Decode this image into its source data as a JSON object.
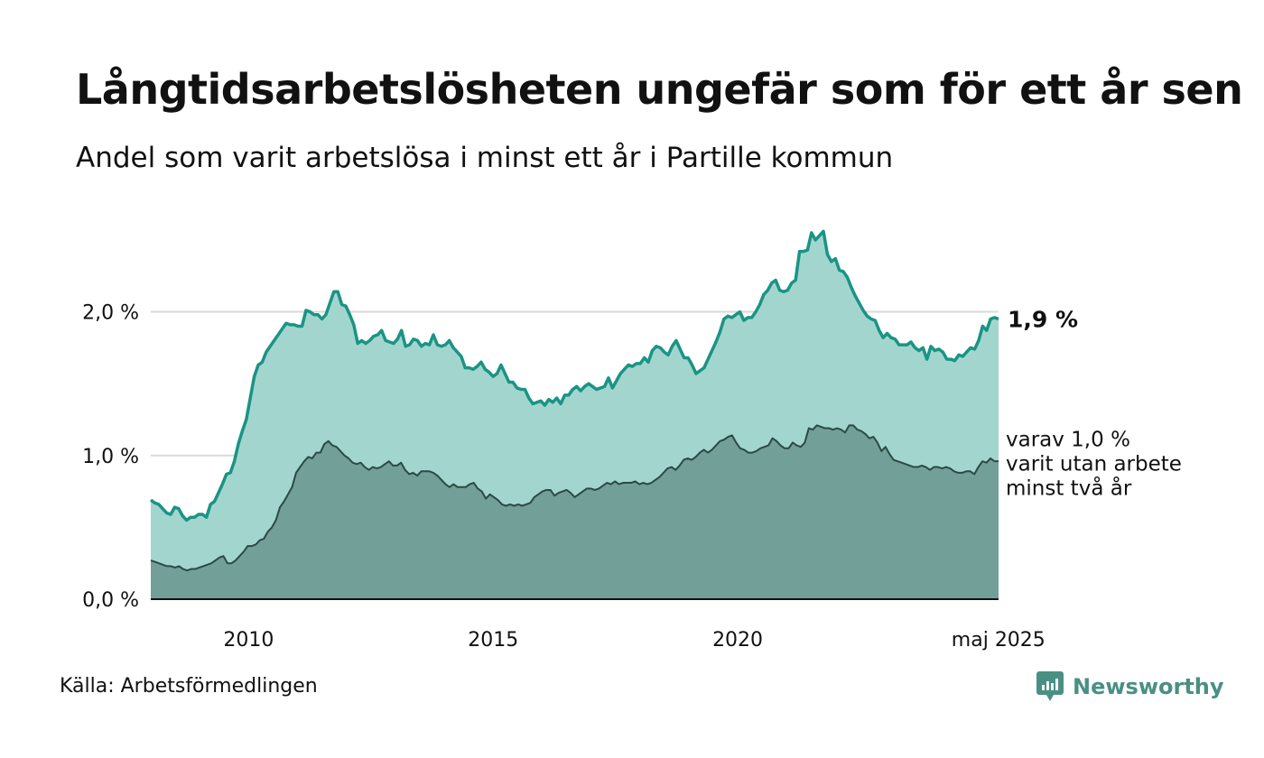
{
  "title": "Långtidsarbetslösheten ungefär som för ett år sen",
  "subtitle": "Andel som varit arbetslösa i minst ett år i Partille kommun",
  "source": "Källa: Arbetsförmedlingen",
  "brand": {
    "name": "Newsworthy",
    "icon": "newsworthy-logo-icon",
    "color": "#4a8f84"
  },
  "colors": {
    "main_line": "#1a9484",
    "main_fill": "#a3d5cf",
    "sub_line": "#2b4a44",
    "sub_fill": "#729f97",
    "grid": "#d9d9d9",
    "axis": "#111111"
  },
  "chart_data": {
    "type": "area",
    "x_start": "2008-01",
    "x_end": "2025-05",
    "frequency": "monthly",
    "ylim": [
      0,
      2.6
    ],
    "y_ticks": [
      {
        "value": 0,
        "label": "0,0 %"
      },
      {
        "value": 1,
        "label": "1,0 %"
      },
      {
        "value": 2,
        "label": "2,0 %"
      }
    ],
    "x_ticks": [
      {
        "year": 2010,
        "label": "2010"
      },
      {
        "year": 2015,
        "label": "2015"
      },
      {
        "year": 2020,
        "label": "2020"
      },
      {
        "year": 2025.33,
        "label": "maj 2025"
      }
    ],
    "grid": true,
    "series": [
      {
        "key": "minst_ett_ar",
        "values": [
          0.69,
          0.67,
          0.66,
          0.63,
          0.6,
          0.59,
          0.64,
          0.63,
          0.58,
          0.55,
          0.57,
          0.57,
          0.59,
          0.59,
          0.57,
          0.66,
          0.68,
          0.74,
          0.8,
          0.87,
          0.88,
          0.96,
          1.08,
          1.17,
          1.25,
          1.4,
          1.55,
          1.63,
          1.65,
          1.72,
          1.76,
          1.8,
          1.84,
          1.88,
          1.92,
          1.91,
          1.91,
          1.9,
          1.9,
          2.01,
          2.0,
          1.98,
          1.98,
          1.95,
          1.98,
          2.06,
          2.14,
          2.14,
          2.05,
          2.04,
          1.98,
          1.91,
          1.78,
          1.8,
          1.78,
          1.8,
          1.83,
          1.84,
          1.87,
          1.8,
          1.79,
          1.78,
          1.81,
          1.87,
          1.76,
          1.77,
          1.81,
          1.8,
          1.76,
          1.78,
          1.77,
          1.84,
          1.77,
          1.76,
          1.77,
          1.8,
          1.75,
          1.72,
          1.69,
          1.61,
          1.61,
          1.6,
          1.62,
          1.65,
          1.6,
          1.58,
          1.55,
          1.57,
          1.63,
          1.57,
          1.51,
          1.51,
          1.47,
          1.46,
          1.46,
          1.4,
          1.36,
          1.37,
          1.38,
          1.35,
          1.39,
          1.37,
          1.4,
          1.36,
          1.42,
          1.42,
          1.46,
          1.48,
          1.45,
          1.48,
          1.5,
          1.48,
          1.46,
          1.47,
          1.48,
          1.54,
          1.47,
          1.52,
          1.57,
          1.6,
          1.63,
          1.62,
          1.64,
          1.64,
          1.68,
          1.65,
          1.73,
          1.76,
          1.75,
          1.72,
          1.7,
          1.76,
          1.8,
          1.74,
          1.68,
          1.68,
          1.63,
          1.57,
          1.59,
          1.61,
          1.67,
          1.73,
          1.79,
          1.86,
          1.95,
          1.97,
          1.96,
          1.98,
          2.0,
          1.94,
          1.96,
          1.96,
          2.0,
          2.05,
          2.12,
          2.15,
          2.2,
          2.22,
          2.15,
          2.14,
          2.15,
          2.2,
          2.22,
          2.42,
          2.42,
          2.43,
          2.55,
          2.5,
          2.53,
          2.56,
          2.4,
          2.35,
          2.37,
          2.29,
          2.28,
          2.24,
          2.17,
          2.11,
          2.06,
          2.01,
          1.97,
          1.95,
          1.94,
          1.87,
          1.82,
          1.85,
          1.82,
          1.81,
          1.77,
          1.77,
          1.77,
          1.79,
          1.75,
          1.73,
          1.75,
          1.67,
          1.76,
          1.73,
          1.74,
          1.72,
          1.67,
          1.67,
          1.66,
          1.7,
          1.69,
          1.72,
          1.75,
          1.74,
          1.8,
          1.9,
          1.87,
          1.95,
          1.96,
          1.95
        ]
      },
      {
        "key": "minst_tva_ar",
        "values": [
          0.27,
          0.26,
          0.25,
          0.24,
          0.23,
          0.23,
          0.22,
          0.23,
          0.21,
          0.2,
          0.21,
          0.21,
          0.22,
          0.23,
          0.24,
          0.25,
          0.27,
          0.29,
          0.3,
          0.25,
          0.25,
          0.27,
          0.3,
          0.33,
          0.37,
          0.37,
          0.38,
          0.41,
          0.42,
          0.47,
          0.5,
          0.55,
          0.64,
          0.68,
          0.73,
          0.78,
          0.88,
          0.92,
          0.96,
          0.99,
          0.98,
          1.02,
          1.02,
          1.08,
          1.1,
          1.07,
          1.06,
          1.03,
          1.0,
          0.98,
          0.95,
          0.94,
          0.95,
          0.92,
          0.9,
          0.92,
          0.91,
          0.92,
          0.94,
          0.96,
          0.93,
          0.93,
          0.95,
          0.9,
          0.87,
          0.88,
          0.86,
          0.89,
          0.89,
          0.89,
          0.88,
          0.86,
          0.83,
          0.8,
          0.78,
          0.8,
          0.78,
          0.78,
          0.78,
          0.8,
          0.81,
          0.77,
          0.75,
          0.7,
          0.73,
          0.71,
          0.69,
          0.66,
          0.65,
          0.66,
          0.65,
          0.66,
          0.65,
          0.66,
          0.67,
          0.71,
          0.73,
          0.75,
          0.76,
          0.76,
          0.72,
          0.74,
          0.75,
          0.76,
          0.74,
          0.71,
          0.73,
          0.75,
          0.77,
          0.77,
          0.76,
          0.77,
          0.79,
          0.81,
          0.8,
          0.82,
          0.8,
          0.81,
          0.81,
          0.81,
          0.82,
          0.8,
          0.81,
          0.8,
          0.81,
          0.83,
          0.85,
          0.88,
          0.91,
          0.92,
          0.9,
          0.93,
          0.97,
          0.98,
          0.97,
          0.99,
          1.02,
          1.04,
          1.02,
          1.04,
          1.07,
          1.1,
          1.11,
          1.13,
          1.14,
          1.09,
          1.05,
          1.04,
          1.02,
          1.02,
          1.03,
          1.05,
          1.06,
          1.07,
          1.12,
          1.1,
          1.07,
          1.05,
          1.05,
          1.09,
          1.07,
          1.06,
          1.09,
          1.19,
          1.18,
          1.21,
          1.2,
          1.19,
          1.19,
          1.18,
          1.19,
          1.18,
          1.16,
          1.21,
          1.21,
          1.18,
          1.17,
          1.15,
          1.12,
          1.13,
          1.09,
          1.03,
          1.06,
          1.01,
          0.97,
          0.96,
          0.95,
          0.94,
          0.93,
          0.92,
          0.92,
          0.93,
          0.92,
          0.9,
          0.92,
          0.92,
          0.91,
          0.92,
          0.91,
          0.89,
          0.88,
          0.88,
          0.89,
          0.89,
          0.87,
          0.92,
          0.96,
          0.95,
          0.98,
          0.96,
          0.96
        ]
      }
    ],
    "annotations": [
      {
        "target": "minst_ett_ar",
        "text": "1,9 %"
      },
      {
        "target": "minst_tva_ar",
        "lines": [
          "varav 1,0 %",
          "varit utan arbete",
          "minst två år"
        ]
      }
    ]
  }
}
